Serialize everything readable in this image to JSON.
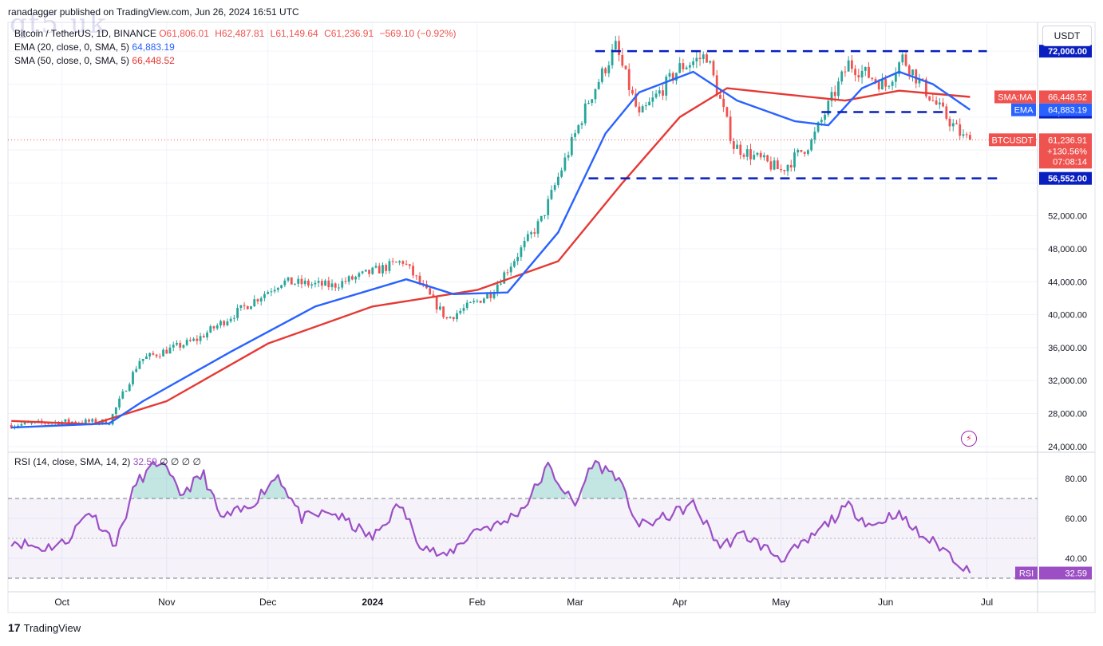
{
  "header": {
    "published": "ranadagger published on TradingView.com, Jun 26, 2024 16:51 UTC",
    "watermark": "qt5.uk"
  },
  "legend": {
    "symbol": "Bitcoin / TetherUS, 1D, BINANCE",
    "open": "O61,806.01",
    "high": "H62,487.81",
    "low": "L61,149.64",
    "close": "C61,236.91",
    "change": "−569.10 (−0.92%)",
    "ema": "EMA (20, close, 0, SMA, 5)",
    "ema_value": "64,883.19",
    "sma": "SMA (50, close, 0, SMA, 5)",
    "sma_value": "66,448.52",
    "rsi": "RSI (14, close, SMA, 14, 2)",
    "rsi_value": "32.59",
    "rsi_extra": "∅ ∅ ∅ ∅"
  },
  "currency": "USDT",
  "brand": "TradingView",
  "colors": {
    "up": "#26a69a",
    "down": "#ef5350",
    "ema": "#2962ff",
    "sma": "#e53935",
    "rsi": "#9c4fc5",
    "level": "#0a1fbf"
  },
  "chart_data": [
    {
      "type": "candlestick",
      "title": "Bitcoin / TetherUS, 1D, BINANCE",
      "ylim": [
        23500,
        75500
      ],
      "y_ticks": [
        24000,
        28000,
        32000,
        36000,
        40000,
        44000,
        48000,
        52000
      ],
      "y_tick_labels": [
        "24,000.00",
        "28,000.00",
        "32,000.00",
        "36,000.00",
        "40,000.00",
        "44,000.00",
        "48,000.00",
        "52,000.00"
      ],
      "x_labels": [
        "Oct",
        "Nov",
        "Dec",
        "2024",
        "Feb",
        "Mar",
        "Apr",
        "May",
        "Jun",
        "Jul"
      ],
      "x_label_dates": [
        "2023-10-01",
        "2023-11-01",
        "2023-12-01",
        "2024-01-01",
        "2024-02-01",
        "2024-03-01",
        "2024-04-01",
        "2024-05-01",
        "2024-06-01",
        "2024-07-01"
      ],
      "x_range": [
        "2023-09-15",
        "2024-07-16"
      ],
      "grid": true,
      "series_close": {
        "dates": [
          "2023-09-16",
          "2023-10-01",
          "2023-10-15",
          "2023-10-24",
          "2023-11-10",
          "2023-12-05",
          "2023-12-20",
          "2024-01-10",
          "2024-01-23",
          "2024-02-05",
          "2024-02-20",
          "2024-03-05",
          "2024-03-13",
          "2024-03-20",
          "2024-04-01",
          "2024-04-09",
          "2024-04-17",
          "2024-05-01",
          "2024-05-10",
          "2024-05-21",
          "2024-06-01",
          "2024-06-06",
          "2024-06-15",
          "2024-06-24",
          "2024-06-26"
        ],
        "values": [
          26600,
          27000,
          27000,
          34500,
          37000,
          44000,
          43500,
          46500,
          39500,
          42600,
          51500,
          66000,
          72500,
          64000,
          70000,
          71500,
          60500,
          57500,
          61000,
          70500,
          67800,
          71200,
          66000,
          61500,
          61236.91
        ]
      },
      "ema20": {
        "name": "EMA",
        "last": 64883.19,
        "dates": [
          "2023-09-16",
          "2023-10-15",
          "2023-10-25",
          "2023-11-20",
          "2023-12-15",
          "2024-01-11",
          "2024-01-25",
          "2024-02-10",
          "2024-02-25",
          "2024-03-10",
          "2024-03-20",
          "2024-04-05",
          "2024-04-18",
          "2024-05-05",
          "2024-05-15",
          "2024-05-25",
          "2024-06-05",
          "2024-06-15",
          "2024-06-26"
        ],
        "values": [
          26300,
          26800,
          29500,
          35500,
          41000,
          44300,
          42500,
          42700,
          50000,
          62000,
          67000,
          69500,
          66000,
          63500,
          63000,
          67500,
          69500,
          68000,
          64883.19
        ]
      },
      "sma50": {
        "name": "SMA",
        "last": 66448.52,
        "dates": [
          "2023-09-16",
          "2023-10-10",
          "2023-11-01",
          "2023-12-01",
          "2024-01-01",
          "2024-02-01",
          "2024-02-25",
          "2024-03-15",
          "2024-04-01",
          "2024-04-15",
          "2024-05-01",
          "2024-05-20",
          "2024-06-05",
          "2024-06-26"
        ],
        "values": [
          27100,
          26700,
          29500,
          36500,
          41000,
          43000,
          46500,
          56000,
          64000,
          67500,
          66800,
          66000,
          67200,
          66448.52
        ]
      },
      "horizontal_levels": [
        {
          "value": 72000,
          "label": "72,000.00",
          "from": "2024-03-07",
          "to": "2024-07-01"
        },
        {
          "value": 64602,
          "label": "64,602.00",
          "from": "2024-05-13",
          "to": "2024-06-22"
        },
        {
          "value": 56552,
          "label": "56,552.00",
          "from": "2024-03-05",
          "to": "2024-07-04"
        }
      ],
      "price_tags": [
        {
          "name": "SMA:MA",
          "value": 66448.52,
          "text": "66,448.52"
        },
        {
          "name": "EMA",
          "value": 64883.19,
          "text": "64,883.19"
        },
        {
          "name": "BTCUSDT",
          "value": 61236.91,
          "text": "61,236.91",
          "extra": [
            "+130.56%",
            "07:08:14"
          ]
        }
      ]
    },
    {
      "type": "line",
      "title": "RSI (14, close, SMA, 14, 2)",
      "ylim": [
        24,
        92
      ],
      "y_ticks": [
        40,
        60,
        80
      ],
      "y_tick_labels": [
        "40.00",
        "60.00",
        "80.00"
      ],
      "band": [
        30,
        70
      ],
      "midline": 50,
      "last": 32.59,
      "dates": [
        "2023-09-16",
        "2023-09-25",
        "2023-10-02",
        "2023-10-09",
        "2023-10-17",
        "2023-10-23",
        "2023-10-30",
        "2023-11-05",
        "2023-11-12",
        "2023-11-17",
        "2023-11-25",
        "2023-12-04",
        "2023-12-11",
        "2023-12-20",
        "2024-01-01",
        "2024-01-09",
        "2024-01-15",
        "2024-01-22",
        "2024-02-01",
        "2024-02-08",
        "2024-02-15",
        "2024-02-22",
        "2024-03-01",
        "2024-03-06",
        "2024-03-13",
        "2024-03-20",
        "2024-03-27",
        "2024-04-05",
        "2024-04-13",
        "2024-04-20",
        "2024-05-01",
        "2024-05-08",
        "2024-05-15",
        "2024-05-21",
        "2024-05-28",
        "2024-06-04",
        "2024-06-11",
        "2024-06-18",
        "2024-06-24",
        "2024-06-26"
      ],
      "values": [
        49,
        45,
        48,
        64,
        47,
        78,
        89,
        72,
        82,
        60,
        65,
        82,
        60,
        63,
        50,
        67,
        48,
        40,
        55,
        57,
        66,
        86,
        66,
        88,
        82,
        56,
        60,
        67,
        46,
        52,
        40,
        47,
        58,
        66,
        56,
        63,
        52,
        45,
        36,
        32.59
      ]
    }
  ]
}
